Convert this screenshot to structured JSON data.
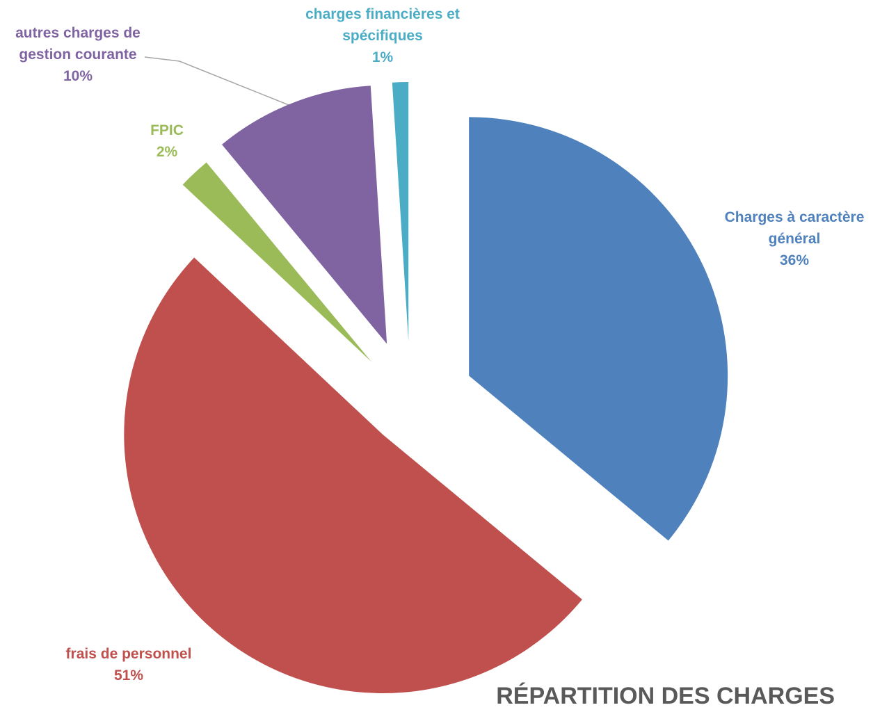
{
  "chart_data": {
    "type": "pie",
    "title": "RÉPARTITION DES CHARGES",
    "categories": [
      "Charges à caractère général",
      "frais de personnel",
      "FPIC",
      "autres charges de gestion courante",
      "charges financières et spécifiques"
    ],
    "values": [
      36,
      51,
      2,
      10,
      1
    ],
    "value_labels": [
      "36%",
      "51%",
      "2%",
      "10%",
      "1%"
    ],
    "colors": [
      "#4f81bd",
      "#c0504d",
      "#9bbb59",
      "#8064a2",
      "#4bacc6"
    ]
  }
}
